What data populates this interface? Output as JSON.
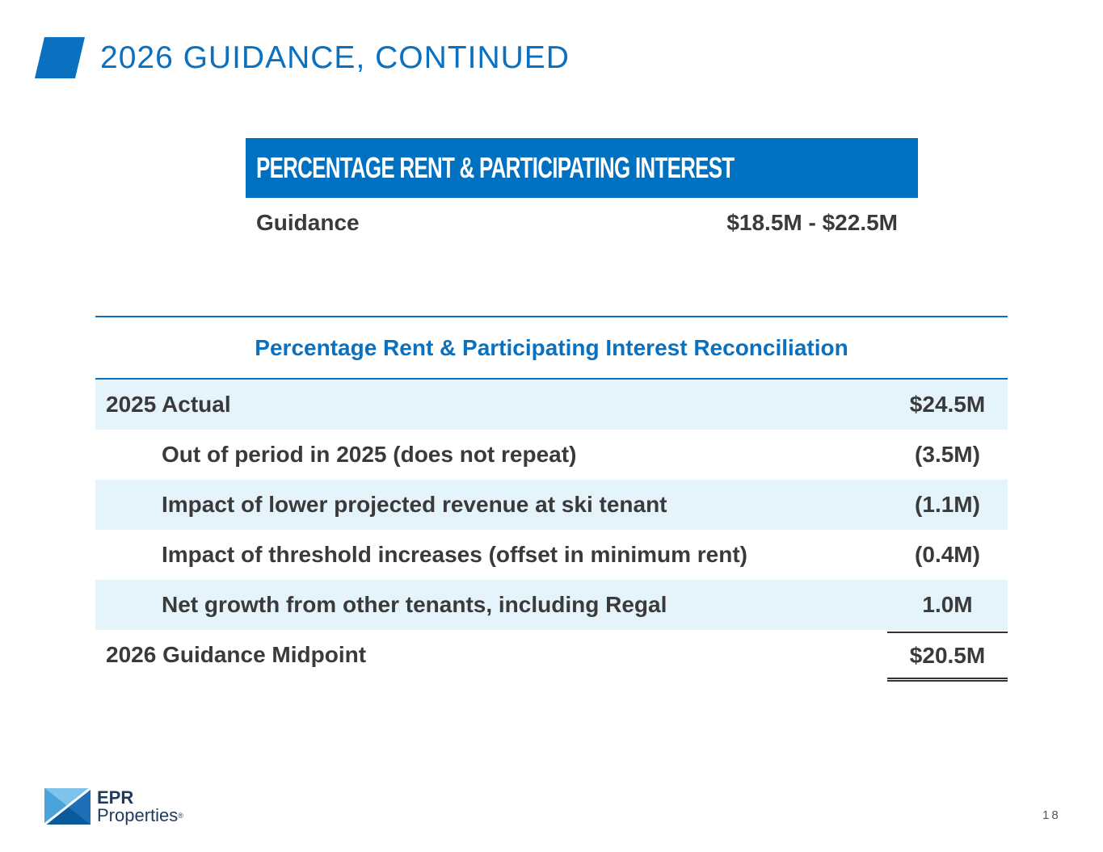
{
  "slide": {
    "title": "2026 GUIDANCE, CONTINUED",
    "page_number": "18",
    "accent_color": "#0a70c0"
  },
  "guidance_box": {
    "header": "PERCENTAGE RENT & PARTICIPATING INTEREST",
    "row_label": "Guidance",
    "row_value": "$18.5M - $22.5M",
    "header_color": "#0070c0"
  },
  "reconciliation": {
    "title": "Percentage Rent & Participating Interest Reconciliation",
    "shade_color": "#e5f3fb",
    "rows": [
      {
        "label": "2025 Actual",
        "value": "$24.5M"
      },
      {
        "label": "Out of period in 2025 (does not repeat)",
        "value": "(3.5M)"
      },
      {
        "label": "Impact of lower projected revenue at ski tenant",
        "value": "(1.1M)"
      },
      {
        "label": "Impact of threshold increases (offset in minimum rent)",
        "value": "(0.4M)"
      },
      {
        "label": "Net growth from other tenants, including Regal",
        "value": "1.0M"
      }
    ],
    "total": {
      "label": "2026 Guidance Midpoint",
      "value": "$20.5M"
    }
  },
  "logo": {
    "line1": "EPR",
    "line2": "Properties",
    "mark": "®",
    "icon": "epr-logo-icon"
  }
}
